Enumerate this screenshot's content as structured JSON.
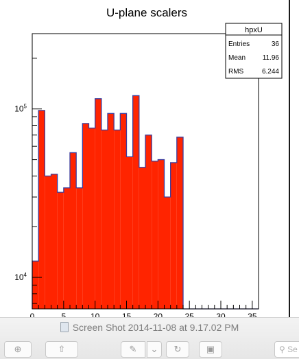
{
  "chart_data": {
    "type": "bar",
    "title": "U-plane scalers",
    "xlabel": "",
    "ylabel": "",
    "y_scale": "log",
    "xlim": [
      0,
      36
    ],
    "ylim": [
      6500,
      280000
    ],
    "x_ticks": [
      0,
      5,
      10,
      15,
      20,
      25,
      30,
      35
    ],
    "y_ticks": [
      {
        "value": 10000,
        "label": "10",
        "exp": "4"
      },
      {
        "value": 100000,
        "label": "10",
        "exp": "5"
      }
    ],
    "bin_width": 1,
    "values": [
      12500,
      98000,
      40000,
      41000,
      32000,
      34000,
      55000,
      34000,
      82000,
      77000,
      115000,
      75000,
      94000,
      75000,
      94000,
      52000,
      120000,
      45000,
      70000,
      49000,
      50000,
      30000,
      48000,
      68000,
      0,
      0,
      0,
      0,
      0,
      0,
      0,
      0,
      0,
      0,
      0,
      0
    ],
    "fill_color": "#ff2400",
    "line_color": "#3c3c9c",
    "stats_box": {
      "name": "hpxU",
      "rows": [
        {
          "label": "Entries",
          "value": "36"
        },
        {
          "label": "Mean",
          "value": "11.96"
        },
        {
          "label": "RMS",
          "value": "6.244"
        }
      ]
    }
  },
  "viewer": {
    "caption": "Screen Shot 2014-11-08 at 9.17.02 PM",
    "search_placeholder": "Se",
    "zoom_glyph": "⊕",
    "share_glyph": "⇧",
    "markup_glyph": "✎",
    "chevron_glyph": "⌄",
    "rotate_glyph": "↻",
    "toolbox_glyph": "▣"
  }
}
